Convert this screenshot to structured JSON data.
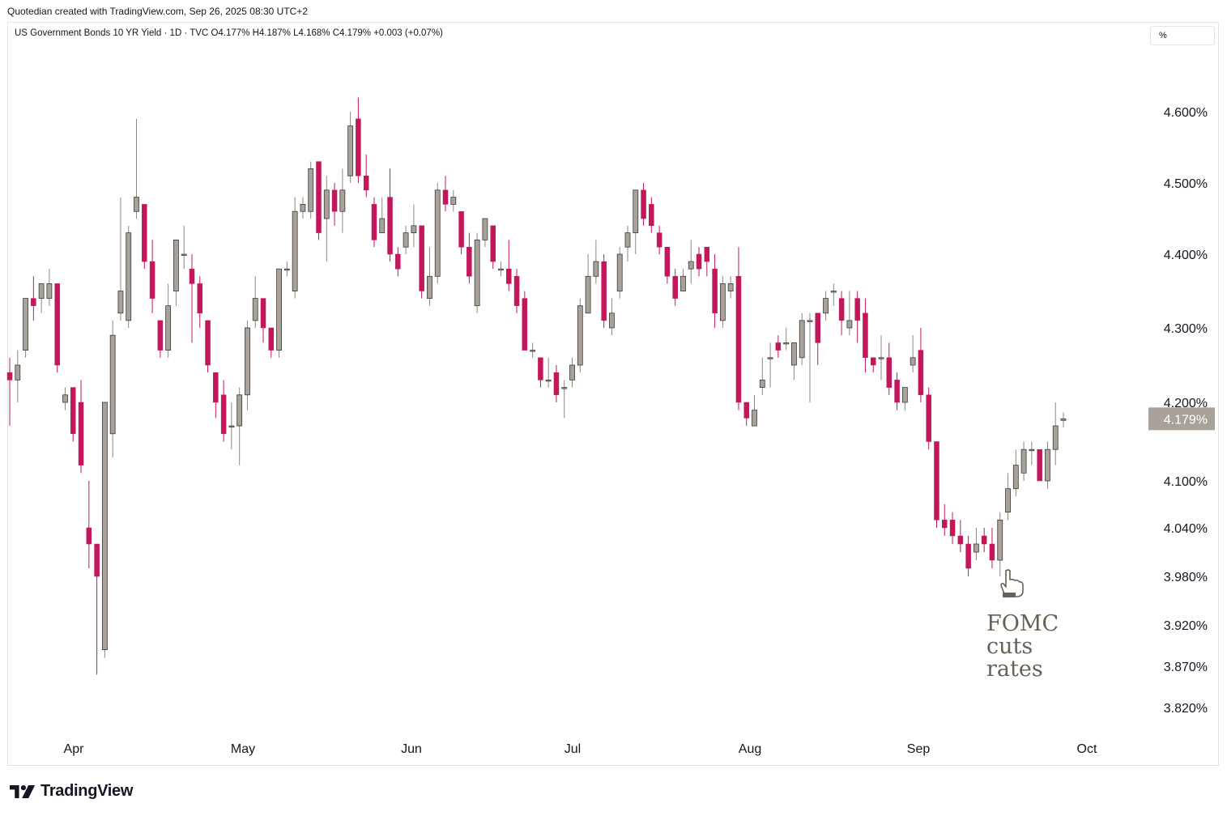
{
  "header": {
    "caption": "Quotedian created with TradingView.com, Sep 26, 2025 08:30 UTC+2"
  },
  "legend": {
    "text": "US Government Bonds 10 YR Yield · 1D · TVC  O4.177%  H4.187%  L4.168%  C4.179%  +0.003 (+0.07%)"
  },
  "unit_selector": {
    "label": "%"
  },
  "brand": {
    "name": "TradingView"
  },
  "colors": {
    "up": "#a8a29a",
    "down": "#c2185b",
    "wick": "#8d8780",
    "price_tag_bg": "#a8a29a",
    "annotation_text": "#6b6055"
  },
  "chart_data": {
    "type": "candlestick",
    "title": "US Government Bonds 10 YR Yield",
    "interval": "1D",
    "source": "TVC",
    "y_axis_ticks": [
      "4.600%",
      "4.500%",
      "4.400%",
      "4.300%",
      "4.200%",
      "4.100%",
      "4.040%",
      "3.980%",
      "3.920%",
      "3.870%",
      "3.820%"
    ],
    "x_axis_ticks": [
      "Apr",
      "May",
      "Jun",
      "Jul",
      "Aug",
      "Sep",
      "Oct"
    ],
    "last_price": "4.179%",
    "ohlc_last": {
      "open": 4.177,
      "high": 4.187,
      "low": 4.168,
      "close": 4.179,
      "change": 0.003,
      "change_pct": 0.07
    },
    "annotation": {
      "text": "FOMC cuts rates",
      "lines": [
        "FOMC",
        "cuts",
        "rates"
      ],
      "icon": "pointing-hand-icon"
    },
    "candles": [
      [
        4.24,
        4.23,
        4.26,
        4.17
      ],
      [
        4.23,
        4.25,
        4.27,
        4.2
      ],
      [
        4.27,
        4.34,
        4.34,
        4.26
      ],
      [
        4.34,
        4.33,
        4.37,
        4.31
      ],
      [
        4.34,
        4.36,
        4.36,
        4.32
      ],
      [
        4.34,
        4.36,
        4.38,
        4.33
      ],
      [
        4.36,
        4.25,
        4.36,
        4.24
      ],
      [
        4.2,
        4.21,
        4.22,
        4.19
      ],
      [
        4.22,
        4.16,
        4.22,
        4.15
      ],
      [
        4.2,
        4.12,
        4.23,
        4.11
      ],
      [
        4.04,
        4.02,
        4.1,
        3.99
      ],
      [
        4.02,
        3.98,
        4.02,
        3.86
      ],
      [
        3.89,
        4.2,
        4.2,
        3.88
      ],
      [
        4.16,
        4.29,
        4.31,
        4.13
      ],
      [
        4.32,
        4.35,
        4.48,
        4.31
      ],
      [
        4.31,
        4.43,
        4.44,
        4.3
      ],
      [
        4.46,
        4.48,
        4.59,
        4.45
      ],
      [
        4.47,
        4.39,
        4.47,
        4.38
      ],
      [
        4.39,
        4.34,
        4.42,
        4.32
      ],
      [
        4.31,
        4.27,
        4.31,
        4.26
      ],
      [
        4.27,
        4.33,
        4.36,
        4.26
      ],
      [
        4.35,
        4.42,
        4.42,
        4.33
      ],
      [
        4.4,
        4.4,
        4.44,
        4.38
      ],
      [
        4.38,
        4.36,
        4.4,
        4.28
      ],
      [
        4.36,
        4.32,
        4.37,
        4.3
      ],
      [
        4.31,
        4.25,
        4.31,
        4.24
      ],
      [
        4.24,
        4.2,
        4.24,
        4.18
      ],
      [
        4.21,
        4.16,
        4.23,
        4.15
      ],
      [
        4.17,
        4.17,
        4.2,
        4.14
      ],
      [
        4.17,
        4.21,
        4.22,
        4.12
      ],
      [
        4.21,
        4.3,
        4.31,
        4.19
      ],
      [
        4.31,
        4.34,
        4.37,
        4.3
      ],
      [
        4.34,
        4.3,
        4.34,
        4.28
      ],
      [
        4.3,
        4.27,
        4.3,
        4.26
      ],
      [
        4.27,
        4.38,
        4.38,
        4.26
      ],
      [
        4.38,
        4.38,
        4.39,
        4.37
      ],
      [
        4.35,
        4.46,
        4.48,
        4.34
      ],
      [
        4.46,
        4.47,
        4.48,
        4.45
      ],
      [
        4.46,
        4.52,
        4.53,
        4.45
      ],
      [
        4.53,
        4.43,
        4.53,
        4.42
      ],
      [
        4.45,
        4.49,
        4.51,
        4.39
      ],
      [
        4.49,
        4.46,
        4.5,
        4.44
      ],
      [
        4.46,
        4.49,
        4.52,
        4.43
      ],
      [
        4.51,
        4.58,
        4.6,
        4.5
      ],
      [
        4.59,
        4.51,
        4.62,
        4.5
      ],
      [
        4.51,
        4.49,
        4.54,
        4.48
      ],
      [
        4.47,
        4.42,
        4.48,
        4.41
      ],
      [
        4.43,
        4.45,
        4.48,
        4.43
      ],
      [
        4.48,
        4.4,
        4.52,
        4.39
      ],
      [
        4.4,
        4.38,
        4.41,
        4.37
      ],
      [
        4.41,
        4.43,
        4.44,
        4.4
      ],
      [
        4.43,
        4.44,
        4.47,
        4.41
      ],
      [
        4.44,
        4.35,
        4.44,
        4.34
      ],
      [
        4.34,
        4.37,
        4.41,
        4.33
      ],
      [
        4.37,
        4.49,
        4.5,
        4.36
      ],
      [
        4.49,
        4.47,
        4.51,
        4.46
      ],
      [
        4.47,
        4.48,
        4.49,
        4.46
      ],
      [
        4.46,
        4.41,
        4.46,
        4.4
      ],
      [
        4.41,
        4.37,
        4.43,
        4.36
      ],
      [
        4.33,
        4.42,
        4.43,
        4.32
      ],
      [
        4.42,
        4.45,
        4.45,
        4.41
      ],
      [
        4.44,
        4.39,
        4.44,
        4.38
      ],
      [
        4.38,
        4.38,
        4.39,
        4.37
      ],
      [
        4.38,
        4.36,
        4.42,
        4.35
      ],
      [
        4.37,
        4.33,
        4.38,
        4.32
      ],
      [
        4.34,
        4.27,
        4.35,
        4.27
      ],
      [
        4.27,
        4.27,
        4.28,
        4.26
      ],
      [
        4.26,
        4.23,
        4.26,
        4.22
      ],
      [
        4.23,
        4.23,
        4.26,
        4.22
      ],
      [
        4.24,
        4.21,
        4.25,
        4.2
      ],
      [
        4.22,
        4.22,
        4.23,
        4.18
      ],
      [
        4.23,
        4.25,
        4.26,
        4.22
      ],
      [
        4.25,
        4.33,
        4.34,
        4.24
      ],
      [
        4.32,
        4.37,
        4.4,
        4.32
      ],
      [
        4.37,
        4.39,
        4.42,
        4.36
      ],
      [
        4.39,
        4.31,
        4.4,
        4.3
      ],
      [
        4.3,
        4.32,
        4.34,
        4.29
      ],
      [
        4.35,
        4.4,
        4.41,
        4.34
      ],
      [
        4.41,
        4.43,
        4.44,
        4.39
      ],
      [
        4.43,
        4.49,
        4.49,
        4.4
      ],
      [
        4.49,
        4.45,
        4.5,
        4.44
      ],
      [
        4.47,
        4.44,
        4.48,
        4.43
      ],
      [
        4.43,
        4.41,
        4.44,
        4.4
      ],
      [
        4.41,
        4.37,
        4.41,
        4.36
      ],
      [
        4.37,
        4.34,
        4.38,
        4.33
      ],
      [
        4.35,
        4.37,
        4.38,
        4.35
      ],
      [
        4.38,
        4.39,
        4.42,
        4.36
      ],
      [
        4.4,
        4.38,
        4.41,
        4.37
      ],
      [
        4.41,
        4.39,
        4.41,
        4.37
      ],
      [
        4.38,
        4.32,
        4.4,
        4.3
      ],
      [
        4.31,
        4.36,
        4.37,
        4.3
      ],
      [
        4.35,
        4.36,
        4.37,
        4.34
      ],
      [
        4.37,
        4.2,
        4.41,
        4.19
      ],
      [
        4.2,
        4.18,
        4.2,
        4.17
      ],
      [
        4.17,
        4.19,
        4.21,
        4.17
      ],
      [
        4.22,
        4.23,
        4.26,
        4.21
      ],
      [
        4.26,
        4.26,
        4.28,
        4.22
      ],
      [
        4.28,
        4.27,
        4.29,
        4.26
      ],
      [
        4.28,
        4.28,
        4.3,
        4.27
      ],
      [
        4.25,
        4.28,
        4.28,
        4.23
      ],
      [
        4.26,
        4.31,
        4.32,
        4.25
      ],
      [
        4.31,
        4.31,
        4.32,
        4.2
      ],
      [
        4.32,
        4.28,
        4.32,
        4.25
      ],
      [
        4.32,
        4.34,
        4.35,
        4.31
      ],
      [
        4.35,
        4.35,
        4.36,
        4.33
      ],
      [
        4.34,
        4.31,
        4.35,
        4.29
      ],
      [
        4.3,
        4.31,
        4.35,
        4.29
      ],
      [
        4.34,
        4.31,
        4.35,
        4.28
      ],
      [
        4.32,
        4.26,
        4.34,
        4.24
      ],
      [
        4.26,
        4.25,
        4.26,
        4.24
      ],
      [
        4.26,
        4.26,
        4.29,
        4.23
      ],
      [
        4.26,
        4.22,
        4.28,
        4.21
      ],
      [
        4.23,
        4.2,
        4.24,
        4.19
      ],
      [
        4.2,
        4.22,
        4.22,
        4.19
      ],
      [
        4.25,
        4.26,
        4.29,
        4.24
      ],
      [
        4.27,
        4.21,
        4.3,
        4.2
      ],
      [
        4.21,
        4.15,
        4.22,
        4.14
      ],
      [
        4.15,
        4.05,
        4.15,
        4.04
      ],
      [
        4.05,
        4.04,
        4.07,
        4.03
      ],
      [
        4.05,
        4.03,
        4.06,
        4.02
      ],
      [
        4.03,
        4.02,
        4.05,
        4.01
      ],
      [
        4.02,
        3.99,
        4.03,
        3.98
      ],
      [
        4.01,
        4.02,
        4.04,
        4.0
      ],
      [
        4.03,
        4.02,
        4.04,
        4.01
      ],
      [
        4.02,
        4.0,
        4.04,
        3.99
      ],
      [
        4.0,
        4.05,
        4.06,
        3.98
      ],
      [
        4.06,
        4.09,
        4.11,
        4.05
      ],
      [
        4.09,
        4.12,
        4.14,
        4.08
      ],
      [
        4.11,
        4.14,
        4.15,
        4.1
      ],
      [
        4.14,
        4.14,
        4.15,
        4.12
      ],
      [
        4.14,
        4.1,
        4.14,
        4.1
      ],
      [
        4.1,
        4.14,
        4.15,
        4.09
      ],
      [
        4.14,
        4.17,
        4.2,
        4.12
      ],
      [
        4.177,
        4.179,
        4.187,
        4.168
      ]
    ]
  }
}
